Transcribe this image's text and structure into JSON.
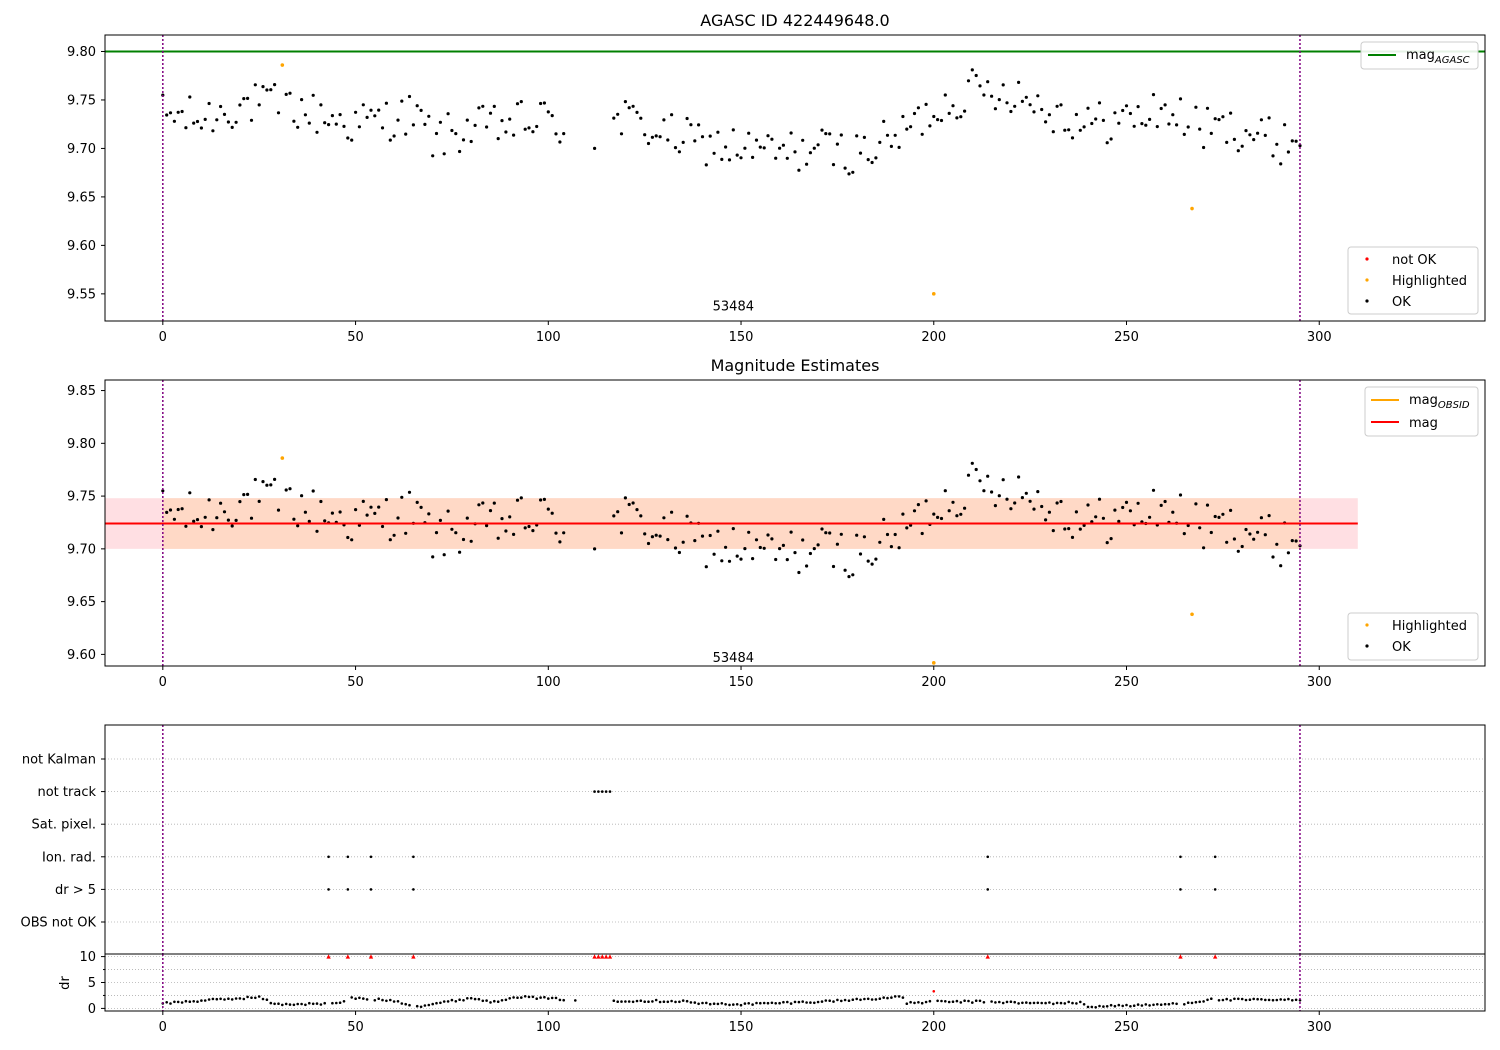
{
  "colors": {
    "ok": "#000000",
    "highlighted": "#ffa500",
    "not_ok": "#ff0000",
    "mag_agasc": "#008000",
    "mag": "#ff0000",
    "mag_obsid": "#ffa500",
    "band_pink": "#ffdfe3",
    "band_orange": "#ffd9c6",
    "vline": "#800080",
    "grid": "#b0b0b0"
  },
  "chart_data": [
    {
      "type": "scatter",
      "title": "AGASC ID 422449648.0",
      "annotation": "53484",
      "annotation_x": 148,
      "annotation_y": 9.533,
      "xlim": [
        -15,
        343
      ],
      "ylim": [
        9.522,
        9.817
      ],
      "xticks": [
        0,
        50,
        100,
        150,
        200,
        250,
        300
      ],
      "yticks": [
        "9.55",
        "9.60",
        "9.65",
        "9.70",
        "9.75",
        "9.80"
      ],
      "hlines": [
        {
          "name": "mag_AGASC",
          "y": 9.8,
          "color": "#008000"
        }
      ],
      "vlines": [
        0,
        295
      ],
      "legend_top": {
        "placement": "top-right",
        "items": [
          {
            "label": "mag",
            "sub": "AGASC",
            "kind": "line",
            "color": "#008000"
          }
        ]
      },
      "legend_bottom": {
        "placement": "lower-right",
        "items": [
          {
            "label": "not OK",
            "kind": "dot",
            "color": "#ff0000"
          },
          {
            "label": "Highlighted",
            "kind": "dot",
            "color": "#ffa500"
          },
          {
            "label": "OK",
            "kind": "dot",
            "color": "#000000"
          }
        ]
      },
      "highlighted": [
        {
          "x": 31,
          "y": 9.786
        },
        {
          "x": 200,
          "y": 9.55
        },
        {
          "x": 267,
          "y": 9.638
        }
      ]
    },
    {
      "type": "scatter",
      "title": "Magnitude Estimates",
      "annotation": "53484",
      "annotation_x": 148,
      "annotation_y": 9.593,
      "xlim": [
        -15,
        343
      ],
      "ylim": [
        9.589,
        9.86
      ],
      "xticks": [
        0,
        50,
        100,
        150,
        200,
        250,
        300
      ],
      "yticks": [
        "9.60",
        "9.65",
        "9.70",
        "9.75",
        "9.80",
        "9.85"
      ],
      "band": {
        "x0": -15,
        "x1": 310,
        "y0": 9.7,
        "y1": 9.748
      },
      "hlines": [
        {
          "name": "mag",
          "y": 9.724,
          "color": "#ff0000"
        }
      ],
      "vlines": [
        0,
        295
      ],
      "legend_top": {
        "placement": "top-right",
        "items": [
          {
            "label": "mag",
            "sub": "OBSID",
            "kind": "line",
            "color": "#ffa500"
          },
          {
            "label": "mag",
            "sub": "",
            "kind": "line",
            "color": "#ff0000"
          }
        ]
      },
      "legend_bottom": {
        "placement": "lower-right",
        "items": [
          {
            "label": "Highlighted",
            "kind": "dot",
            "color": "#ffa500"
          },
          {
            "label": "OK",
            "kind": "dot",
            "color": "#000000"
          }
        ]
      },
      "highlighted": [
        {
          "x": 31,
          "y": 9.786
        },
        {
          "x": 200,
          "y": 9.592
        },
        {
          "x": 267,
          "y": 9.638
        }
      ]
    },
    {
      "type": "scatter",
      "title": "",
      "xlim": [
        -15,
        343
      ],
      "categories": [
        "not Kalman",
        "not track",
        "Sat. pixel.",
        "Ion. rad.",
        "dr > 5",
        "OBS not OK"
      ],
      "flags": {
        "not track": [
          112,
          113,
          114,
          115,
          116
        ],
        "Ion. rad.": [
          43,
          48,
          54,
          65,
          214,
          264,
          273
        ],
        "dr > 5": [
          43,
          48,
          54,
          65,
          214,
          264,
          273
        ]
      },
      "vlines": [
        0,
        295
      ]
    },
    {
      "type": "scatter",
      "title": "",
      "ylabel": "dr",
      "xlim": [
        -15,
        343
      ],
      "ylim": [
        -0.5,
        10.5
      ],
      "xticks": [
        0,
        50,
        100,
        150,
        200,
        250,
        300
      ],
      "yticks": [
        "0",
        "5",
        "10"
      ],
      "clipped_markers": [
        43,
        48,
        54,
        65,
        112,
        113,
        114,
        115,
        116,
        214,
        264,
        273
      ],
      "red_points": [
        {
          "x": 200,
          "y": 3.3
        }
      ],
      "vlines": [
        0,
        295
      ]
    }
  ]
}
